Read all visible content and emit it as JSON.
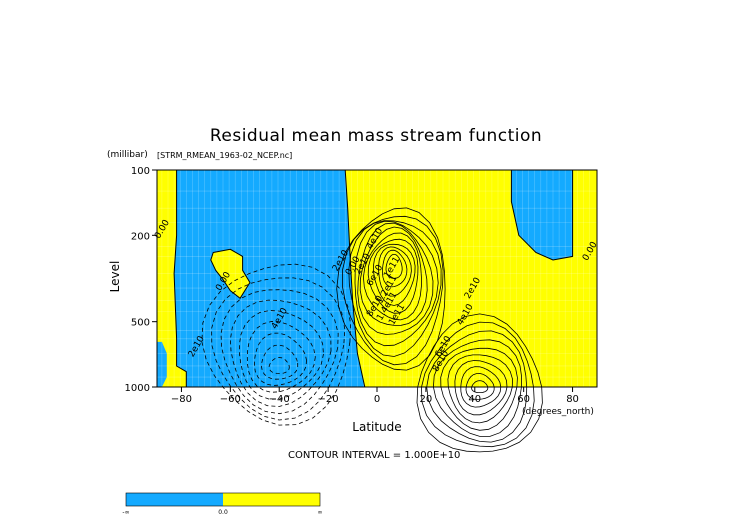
{
  "chart_data": {
    "type": "contour",
    "title": "Residual mean mass stream function",
    "subtitle": "[STRM_RMEAN_1963-02_NCEP.nc]",
    "xlabel": "Latitude",
    "xunits": "(degrees_north)",
    "ylabel": "Level",
    "yunits": "(millibar)",
    "xlim": [
      -90,
      90
    ],
    "ylim": [
      1000,
      100
    ],
    "yscale": "log",
    "x_ticks": [
      -80,
      -60,
      -40,
      -20,
      0,
      20,
      40,
      60,
      80
    ],
    "y_ticks": [
      100,
      200,
      500,
      1000
    ],
    "contour_interval": "CONTOUR INTERVAL = 1.000E+10",
    "contour_labels": [
      {
        "text": "0.00",
        "x": -87,
        "y": 190
      },
      {
        "text": "0.00",
        "x": -62,
        "y": 330
      },
      {
        "text": "0.00",
        "x": -9,
        "y": 280
      },
      {
        "text": "2e10",
        "x": -73,
        "y": 660
      },
      {
        "text": "4e10",
        "x": -39,
        "y": 490
      },
      {
        "text": "2e10",
        "x": -14,
        "y": 265
      },
      {
        "text": "2e10",
        "x": -5,
        "y": 275
      },
      {
        "text": "4e10",
        "x": 0,
        "y": 210
      },
      {
        "text": "6e10",
        "x": 0,
        "y": 310
      },
      {
        "text": "8e10",
        "x": 0,
        "y": 430
      },
      {
        "text": "1e11",
        "x": 7,
        "y": 285
      },
      {
        "text": "1.2e11",
        "x": 5,
        "y": 360
      },
      {
        "text": "1.4e11",
        "x": 5,
        "y": 430
      },
      {
        "text": "1e11",
        "x": 9,
        "y": 470
      },
      {
        "text": "2e10",
        "x": 40,
        "y": 355
      },
      {
        "text": "4e10",
        "x": 37,
        "y": 470
      },
      {
        "text": "6e10",
        "x": 28,
        "y": 660
      },
      {
        "text": "8e10",
        "x": 27,
        "y": 770
      },
      {
        "text": "0.00",
        "x": 88,
        "y": 240
      }
    ],
    "colorbar": {
      "labels": [
        "-∞",
        "0.0",
        "∞"
      ],
      "colors": [
        "#14aaff",
        "#ffff00"
      ]
    },
    "fill_colors": {
      "negative": "#14aaff",
      "positive": "#ffff00"
    }
  }
}
